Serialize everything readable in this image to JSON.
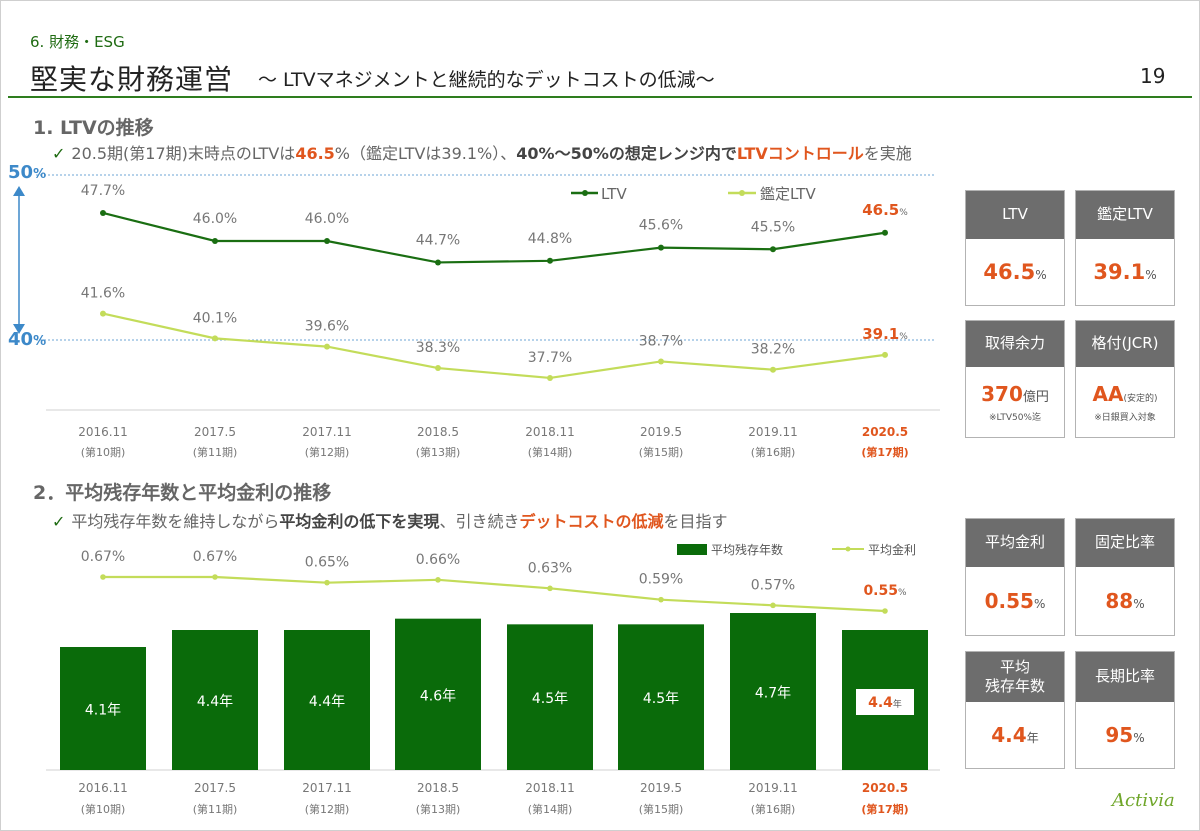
{
  "header": {
    "section_label": "6. 財務・ESG",
    "title": "堅実な財務運営",
    "subtitle": "～ LTVマネジメントと継続的なデットコストの低減～",
    "page_number": "19"
  },
  "section1": {
    "heading": "1. LTVの推移",
    "check_parts": [
      "20.5期(第17期)末時点のLTVは",
      "46.5",
      "%（鑑定LTVは39.1%）、",
      "40%～50%の想定レンジ内で",
      "LTVコントロール",
      "を実施"
    ],
    "axis_top": "50",
    "axis_bottom": "40",
    "axis_unit": "%"
  },
  "section2": {
    "heading": "2．平均残存年数と平均金利の推移",
    "check_parts": [
      "平均残存年数を維持しながら",
      "平均金利の低下を実現",
      "、引き続き",
      "デットコストの低減",
      "を目指す"
    ]
  },
  "kpis": {
    "ltv": {
      "label": "LTV",
      "value": "46.5",
      "unit": "%"
    },
    "appraisal_ltv": {
      "label": "鑑定LTV",
      "value": "39.1",
      "unit": "%"
    },
    "capacity": {
      "label": "取得余力",
      "value": "370",
      "unit": "億円",
      "note": "※LTV50%迄"
    },
    "rating": {
      "label": "格付(JCR)",
      "value": "AA",
      "unit": "(安定的)",
      "note": "※日銀買入対象"
    },
    "avg_rate": {
      "label": "平均金利",
      "value": "0.55",
      "unit": "%"
    },
    "fixed_ratio": {
      "label": "固定比率",
      "value": "88",
      "unit": "%"
    },
    "remaining": {
      "label_1": "平均",
      "label_2": "残存年数",
      "value": "4.4",
      "unit": "年"
    },
    "long_ratio": {
      "label": "長期比率",
      "value": "95",
      "unit": "%"
    }
  },
  "logo": "Activia",
  "colors": {
    "dark_green": "#1a6e12",
    "light_green": "#c3dc5a",
    "orange": "#e0561e",
    "blue": "#3d89c9",
    "bar_green": "#0a6b0a",
    "gray_label": "#6d6d6d"
  },
  "chart_data": [
    {
      "type": "line",
      "categories": [
        "2016.11",
        "2017.5",
        "2017.11",
        "2018.5",
        "2018.11",
        "2019.5",
        "2019.11",
        "2020.5"
      ],
      "periods": [
        "(第10期)",
        "(第11期)",
        "(第12期)",
        "(第13期)",
        "(第14期)",
        "(第15期)",
        "(第16期)",
        "(第17期)"
      ],
      "series": [
        {
          "name": "LTV",
          "values": [
            47.7,
            46.0,
            46.0,
            44.7,
            44.8,
            45.6,
            45.5,
            46.5
          ],
          "labels": [
            "47.7%",
            "46.0%",
            "46.0%",
            "44.7%",
            "44.8%",
            "45.6%",
            "45.5%",
            "46.5"
          ],
          "color": "#1a6e12"
        },
        {
          "name": "鑑定LTV",
          "values": [
            41.6,
            40.1,
            39.6,
            38.3,
            37.7,
            38.7,
            38.2,
            39.1
          ],
          "labels": [
            "41.6%",
            "40.1%",
            "39.6%",
            "38.3%",
            "37.7%",
            "38.7%",
            "38.2%",
            "39.1"
          ],
          "color": "#c3dc5a"
        }
      ],
      "last_label_unit": "%",
      "reference_lines": [
        50,
        40
      ],
      "legend_position": "top-right"
    },
    {
      "type": "bar+line",
      "categories": [
        "2016.11",
        "2017.5",
        "2017.11",
        "2018.5",
        "2018.11",
        "2019.5",
        "2019.11",
        "2020.5"
      ],
      "periods": [
        "(第10期)",
        "(第11期)",
        "(第12期)",
        "(第13期)",
        "(第14期)",
        "(第15期)",
        "(第16期)",
        "(第17期)"
      ],
      "series": [
        {
          "name": "平均残存年数",
          "type": "bar",
          "values": [
            4.1,
            4.4,
            4.4,
            4.6,
            4.5,
            4.5,
            4.7,
            4.4
          ],
          "labels": [
            "4.1年",
            "4.4年",
            "4.4年",
            "4.6年",
            "4.5年",
            "4.5年",
            "4.7年",
            "4.4"
          ],
          "color": "#0a6b0a"
        },
        {
          "name": "平均金利",
          "type": "line",
          "values": [
            0.67,
            0.67,
            0.65,
            0.66,
            0.63,
            0.59,
            0.57,
            0.55
          ],
          "labels": [
            "0.67%",
            "0.67%",
            "0.65%",
            "0.66%",
            "0.63%",
            "0.59%",
            "0.57%",
            "0.55"
          ],
          "color": "#c3dc5a"
        }
      ],
      "last_bar_unit": "年",
      "last_line_unit": "%",
      "legend_position": "top-right"
    }
  ]
}
